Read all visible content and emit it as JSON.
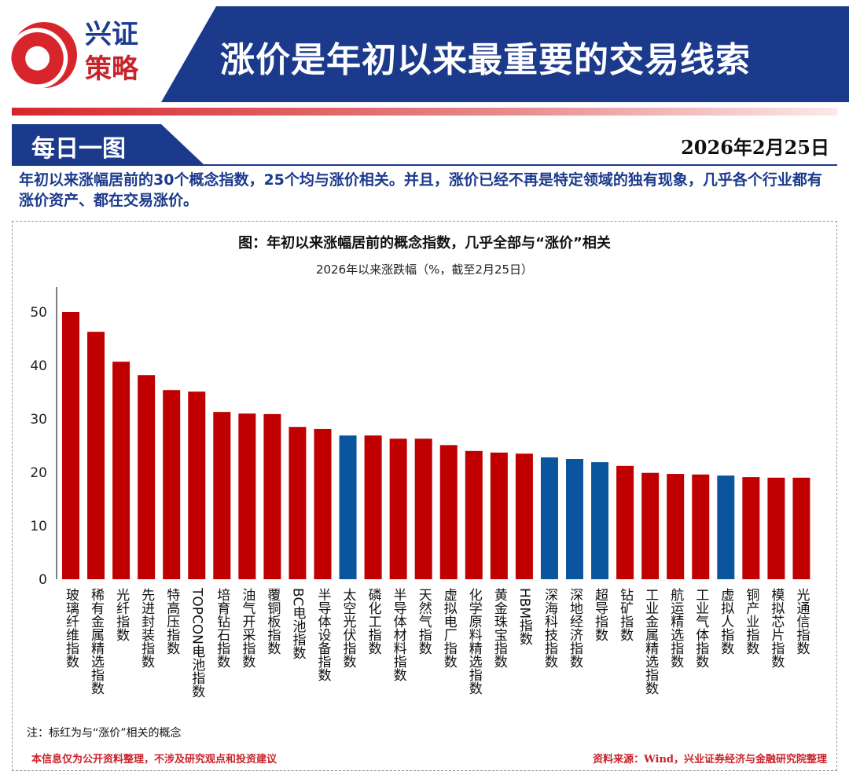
{
  "logo": {
    "line1": "兴证",
    "line2": "策略"
  },
  "header": {
    "title": "涨价是年初以来最重要的交易线索"
  },
  "tab": {
    "label": "每日一图"
  },
  "date": "2026年2月25日",
  "subtitle": "年初以来涨幅居前的30个概念指数，25个均与涨价相关。并且，涨价已经不再是特定领域的独有现象，几乎各个行业都有涨价资产、都在交易涨价。",
  "colors": {
    "related": "#c00000",
    "unrelated": "#0b559e"
  },
  "chart_data": {
    "type": "bar",
    "title": "图：年初以来涨幅居前的概念指数，几乎全部与“涨价”相关",
    "ylabel": "2026年以来涨跌幅（%，截至2月25日）",
    "xlabel": "",
    "ylim": [
      0,
      55
    ],
    "yticks": [
      0,
      10,
      20,
      30,
      40,
      50
    ],
    "categories": [
      "玻璃纤维指数",
      "稀有金属精选指数",
      "光纤指数",
      "先进封装指数",
      "特高压指数",
      "TOPCON电池指数",
      "培育钻石指数",
      "油气开采指数",
      "覆铜板指数",
      "BC电池指数",
      "半导体设备指数",
      "太空光伏指数",
      "磷化工指数",
      "半导体材料指数",
      "天然气指数",
      "虚拟电厂指数",
      "化学原料精选指数",
      "黄金珠宝指数",
      "HBM指数",
      "深海科技指数",
      "深地经济指数",
      "超导指数",
      "钻矿指数",
      "工业金属精选指数",
      "航运精选指数",
      "工业气体指数",
      "虚拟人指数",
      "铜产业指数",
      "模拟芯片指数",
      "光通信指数"
    ],
    "values": [
      50.0,
      46.3,
      40.7,
      38.2,
      35.4,
      35.1,
      31.3,
      31.0,
      30.9,
      28.5,
      28.1,
      26.9,
      26.9,
      26.3,
      26.3,
      25.1,
      24.0,
      23.7,
      23.5,
      22.8,
      22.5,
      21.9,
      21.2,
      19.9,
      19.7,
      19.6,
      19.4,
      19.1,
      19.0,
      19.0
    ],
    "price_related": [
      true,
      true,
      true,
      true,
      true,
      true,
      true,
      true,
      true,
      true,
      true,
      false,
      true,
      true,
      true,
      true,
      true,
      true,
      true,
      false,
      false,
      false,
      true,
      true,
      true,
      true,
      false,
      true,
      true,
      true
    ],
    "grid": false,
    "legend": "none"
  },
  "note": "注：标红为与“涨价”相关的概念",
  "disclaimer": "本信息仅为公开资料整理，不涉及研究观点和投资建议",
  "source": "资料来源：Wind，兴业证券经济与金融研究院整理"
}
